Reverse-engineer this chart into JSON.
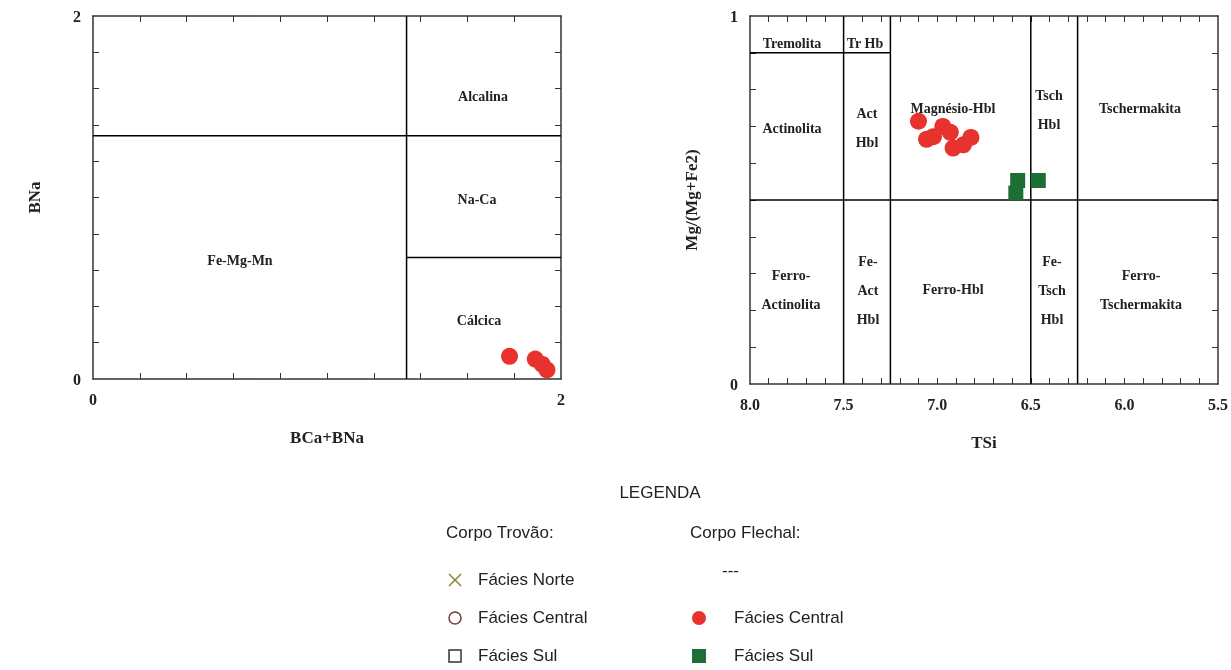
{
  "chart_data": [
    {
      "type": "scatter",
      "xlabel": "BCa+BNa",
      "ylabel": "BNa",
      "xlim": [
        0,
        2
      ],
      "ylim": [
        0,
        2
      ],
      "xticks": [
        0,
        {
          "value": 0.2,
          "label": null
        },
        {
          "value": 0.4,
          "label": null
        },
        {
          "value": 0.6,
          "label": null
        },
        {
          "value": 0.8,
          "label": null
        },
        {
          "value": 1,
          "label": null
        },
        {
          "value": 1.2,
          "label": null
        },
        {
          "value": 1.4,
          "label": null
        },
        {
          "value": 1.6,
          "label": null
        },
        {
          "value": 1.8,
          "label": null
        },
        2
      ],
      "yticks": [
        0,
        {
          "value": 0.2,
          "label": null
        },
        {
          "value": 0.4,
          "label": null
        },
        {
          "value": 0.6,
          "label": null
        },
        {
          "value": 0.8,
          "label": null
        },
        {
          "value": 1,
          "label": null
        },
        {
          "value": 1.2,
          "label": null
        },
        {
          "value": 1.4,
          "label": null
        },
        {
          "value": 1.6,
          "label": null
        },
        {
          "value": 1.8,
          "label": null
        },
        2
      ],
      "grid": false,
      "series": [
        {
          "type": "line",
          "color": "#000000",
          "x": [
            0,
            2
          ],
          "values": [
            1.34,
            1.34
          ]
        },
        {
          "type": "line",
          "color": "#000000",
          "x": [
            1.34,
            1.34
          ],
          "values": [
            0,
            2
          ]
        },
        {
          "type": "line",
          "color": "#000000",
          "x": [
            1.34,
            2
          ],
          "values": [
            0.67,
            0.67
          ]
        },
        {
          "color": "#e8322d",
          "marker": "circle",
          "x": [
            1.78,
            1.89,
            1.92,
            1.94
          ],
          "values": [
            0.125,
            0.11,
            0.08,
            0.05
          ]
        }
      ],
      "annotations": [
        "Alcalina",
        "Na-Ca",
        "Fe-Mg-Mn",
        "Cálcica"
      ]
    },
    {
      "type": "scatter",
      "xlabel": "TSi",
      "ylabel": "Mg/(Mg+Fe2)",
      "xlim": [
        8,
        5.5
      ],
      "ylim": [
        0,
        1
      ],
      "xticks": [
        {
          "value": 8,
          "label": "8.0"
        },
        {
          "value": 7.9,
          "label": null
        },
        {
          "value": 7.8,
          "label": null
        },
        {
          "value": 7.7,
          "label": null
        },
        {
          "value": 7.6,
          "label": null
        },
        {
          "value": 7.5,
          "label": "7.5"
        },
        {
          "value": 7.4,
          "label": null
        },
        {
          "value": 7.3,
          "label": null
        },
        {
          "value": 7.2,
          "label": null
        },
        {
          "value": 7.1,
          "label": null
        },
        {
          "value": 7,
          "label": "7.0"
        },
        {
          "value": 6.9,
          "label": null
        },
        {
          "value": 6.8,
          "label": null
        },
        {
          "value": 6.7,
          "label": null
        },
        {
          "value": 6.6,
          "label": null
        },
        {
          "value": 6.5,
          "label": "6.5"
        },
        {
          "value": 6.4,
          "label": null
        },
        {
          "value": 6.3,
          "label": null
        },
        {
          "value": 6.2,
          "label": null
        },
        {
          "value": 6.1,
          "label": null
        },
        {
          "value": 6,
          "label": "6.0"
        },
        {
          "value": 5.9,
          "label": null
        },
        {
          "value": 5.8,
          "label": null
        },
        {
          "value": 5.7,
          "label": null
        },
        {
          "value": 5.6,
          "label": null
        },
        {
          "value": 5.5,
          "label": "5.5"
        }
      ],
      "yticks": [
        0,
        {
          "value": 0.1,
          "label": null
        },
        {
          "value": 0.2,
          "label": null
        },
        {
          "value": 0.3,
          "label": null
        },
        {
          "value": 0.4,
          "label": null
        },
        {
          "value": 0.5,
          "label": null
        },
        {
          "value": 0.6,
          "label": null
        },
        {
          "value": 0.7,
          "label": null
        },
        {
          "value": 0.8,
          "label": null
        },
        {
          "value": 0.9,
          "label": null
        },
        1
      ],
      "grid": false,
      "series": [
        {
          "type": "line",
          "color": "#000000",
          "x": [
            8,
            5.5
          ],
          "values": [
            0.5,
            0.5
          ]
        },
        {
          "type": "line",
          "color": "#000000",
          "x": [
            8,
            7.25
          ],
          "values": [
            0.9,
            0.9
          ]
        },
        {
          "type": "line",
          "color": "#000000",
          "x": [
            7.5,
            7.5
          ],
          "values": [
            0,
            1
          ]
        },
        {
          "type": "line",
          "color": "#000000",
          "x": [
            7.25,
            7.25
          ],
          "values": [
            0,
            1
          ]
        },
        {
          "type": "line",
          "color": "#000000",
          "x": [
            6.5,
            6.5
          ],
          "values": [
            0,
            1
          ]
        },
        {
          "type": "line",
          "color": "#000000",
          "x": [
            6.25,
            6.25
          ],
          "values": [
            0,
            1
          ]
        },
        {
          "color": "#e8322d",
          "marker": "circle",
          "x": [
            7.1,
            7.057,
            6.97,
            6.93,
            7.02,
            6.915,
            6.86,
            6.82
          ],
          "values": [
            0.714,
            0.665,
            0.7,
            0.684,
            0.672,
            0.641,
            0.65,
            0.67
          ]
        },
        {
          "color": "#1d6e35",
          "marker": "square",
          "x": [
            6.57,
            6.58,
            6.46
          ],
          "values": [
            0.553,
            0.519,
            0.553
          ]
        }
      ],
      "annotations": [
        "Tremolita",
        "Tr Hb",
        "Actinolita",
        "Act\nHbl",
        "Magnésio-Hbl",
        "Tsch\nHbl",
        "Tschermakita",
        "Ferro-\nActinolita",
        "Fe-\nAct\nHbl",
        "Ferro-Hbl",
        "Fe-\nTsch\nHbl",
        "Ferro-\nTschermakita"
      ]
    },
    {
      "type": "other",
      "legend_title": "LEGENDA",
      "annotations": [
        "Corpo Trovão:",
        "Corpo Flechal:",
        "---"
      ],
      "series": [
        {
          "name": "Fácies Norte",
          "color": "#8a8a3a",
          "marker": "cross"
        },
        {
          "name": "Fácies Central",
          "color": "#7a3a3a",
          "marker": "circle"
        },
        {
          "name": "Fácies Sul",
          "color": "#333333",
          "marker": "square"
        },
        {
          "name": "Fácies Central",
          "color": "#e8322d",
          "marker": "circle"
        },
        {
          "name": "Fácies Sul",
          "color": "#1d6e35",
          "marker": "square"
        }
      ]
    }
  ]
}
